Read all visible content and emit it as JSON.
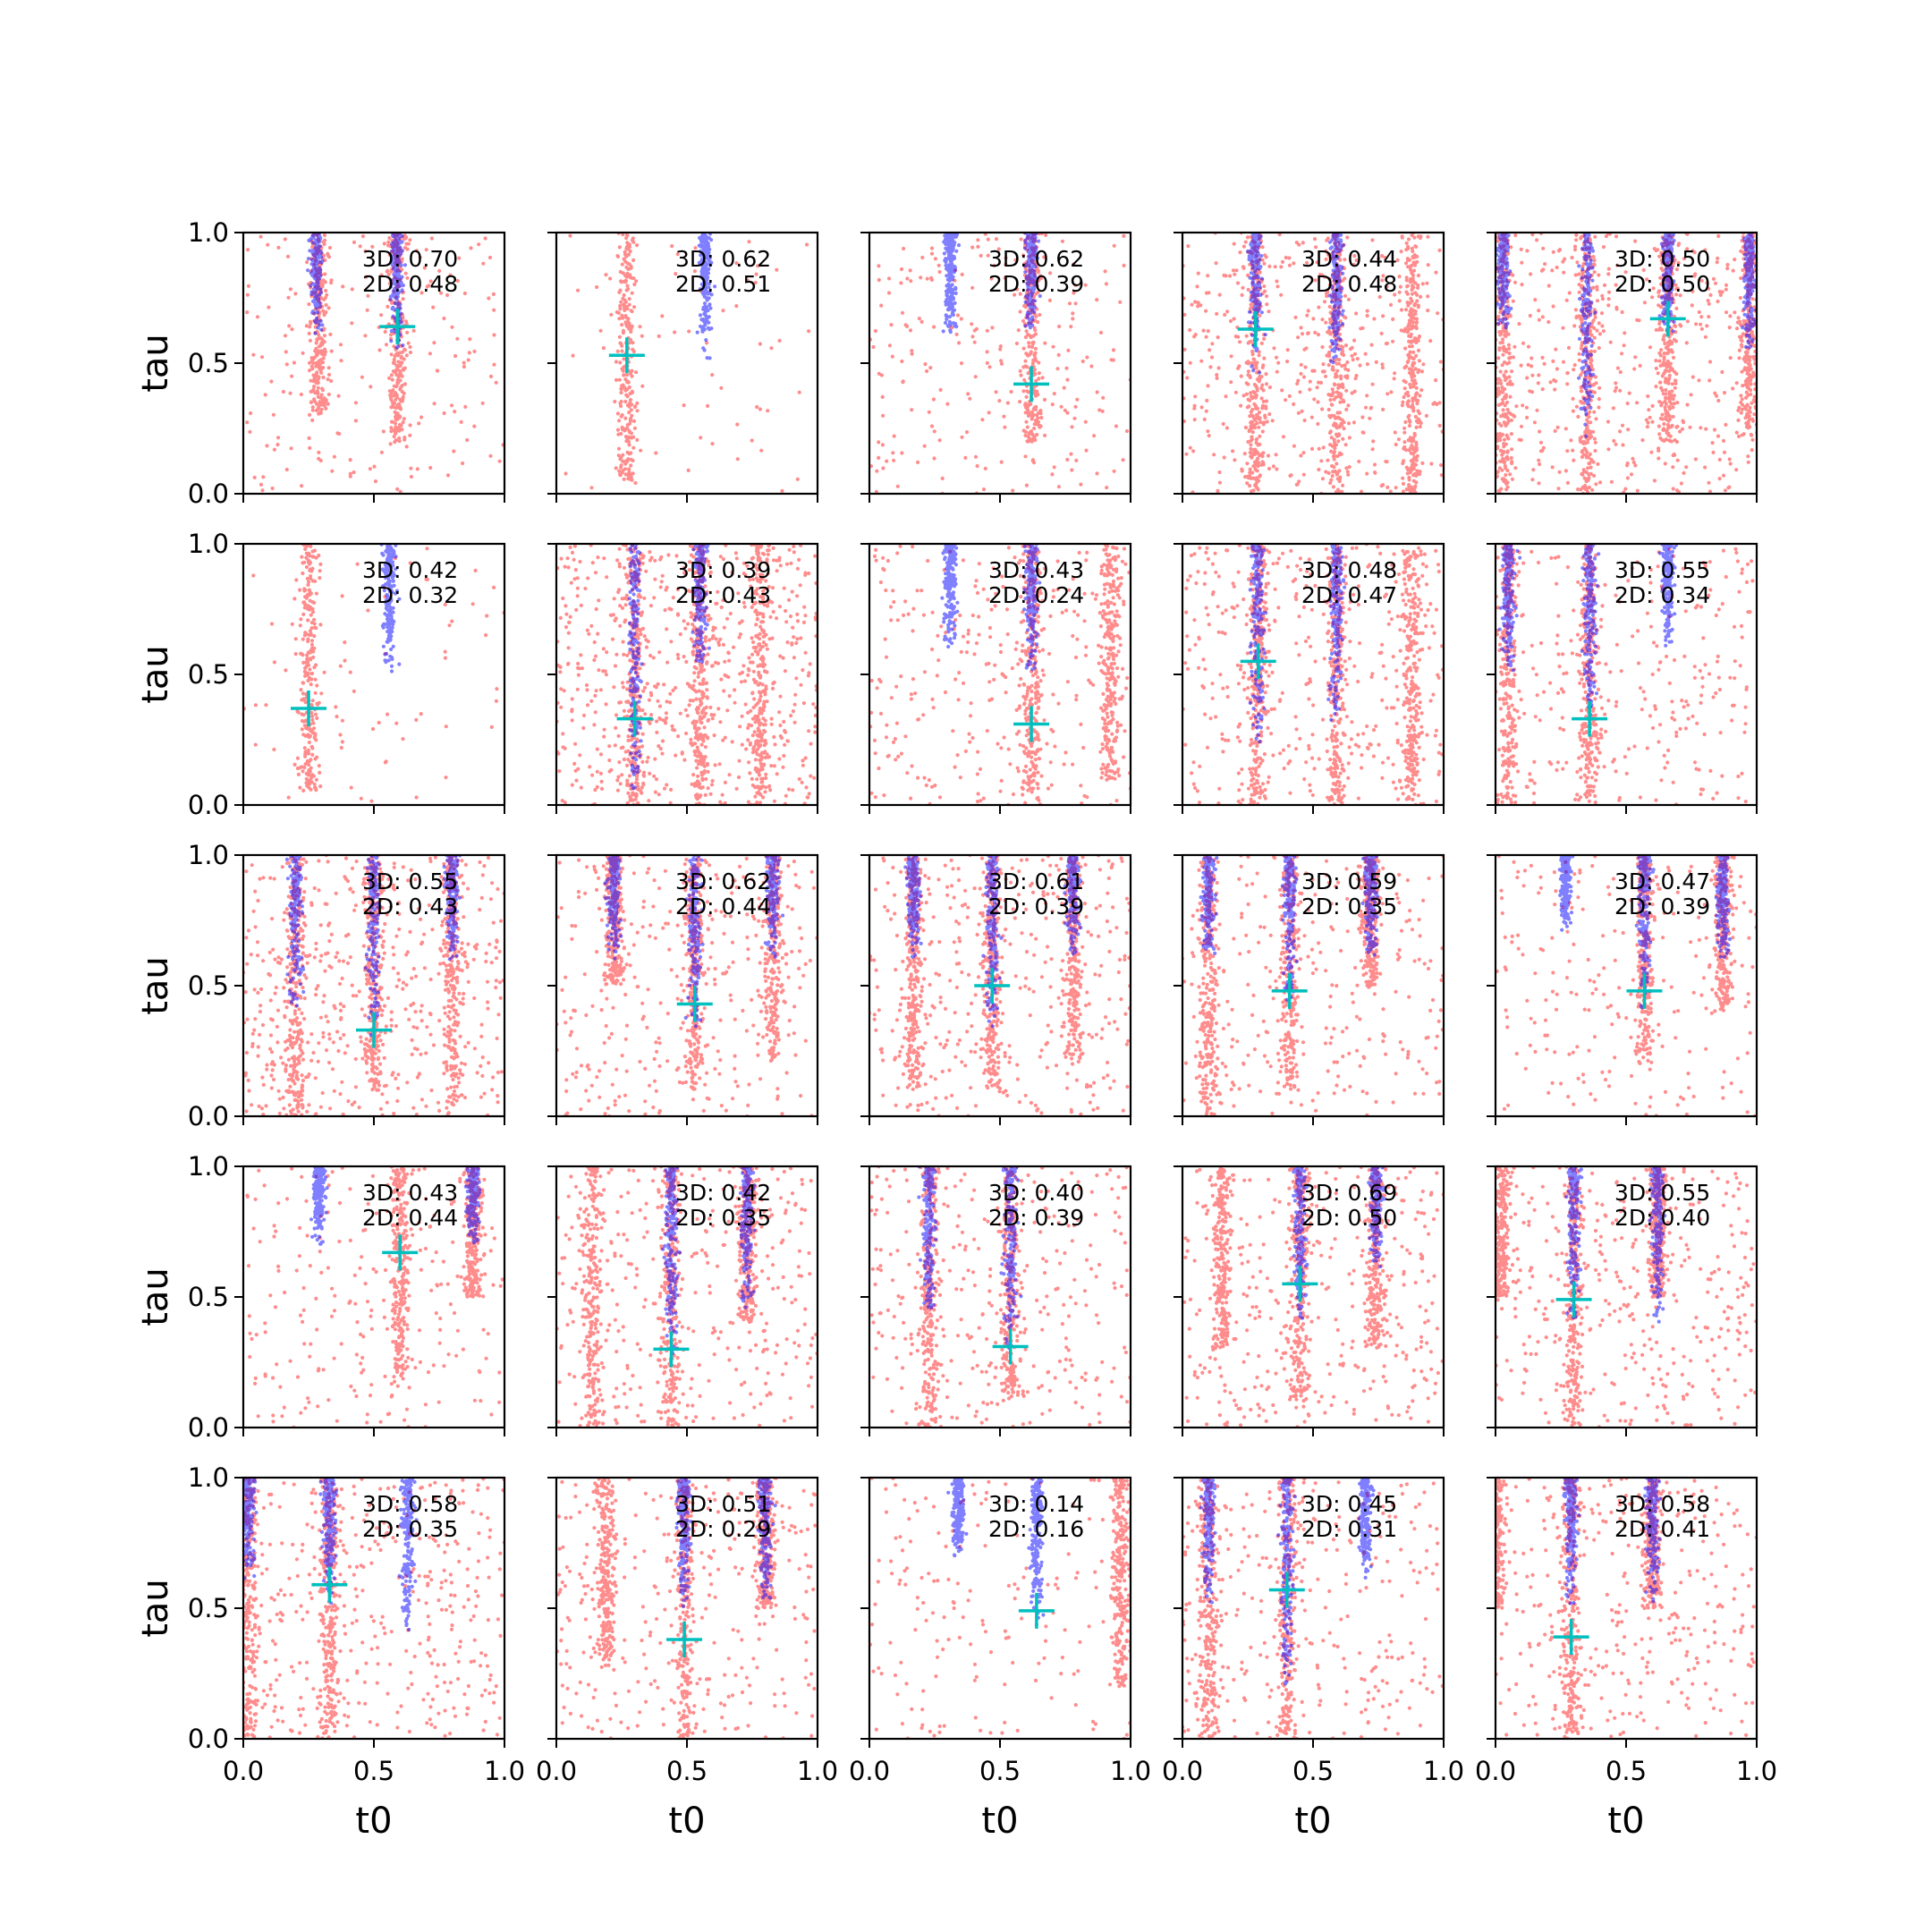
{
  "chart_data": {
    "type": "scatter",
    "layout": {
      "rows": 5,
      "cols": 5
    },
    "xlabel": "t0",
    "ylabel": "tau",
    "xlim": [
      0,
      1
    ],
    "ylim": [
      0,
      1
    ],
    "xticks": [
      "0.0",
      "0.5",
      "1.0"
    ],
    "yticks": [
      "0.0",
      "0.5",
      "1.0"
    ],
    "colors": {
      "series_a": "#ff0000",
      "series_b": "#0000ff",
      "marker": "#00bfbf"
    },
    "panels": [
      {
        "metric_3d": "3D: 0.70",
        "metric_2d": "2D: 0.48",
        "marker": [
          0.59,
          0.64
        ],
        "red_bands": [
          [
            0.59,
            0.18
          ],
          [
            0.29,
            0.3
          ]
        ],
        "blue_bands": [
          [
            0.28,
            0.6
          ],
          [
            0.59,
            0.55
          ]
        ],
        "red_bg": 180
      },
      {
        "metric_3d": "3D: 0.62",
        "metric_2d": "2D: 0.51",
        "marker": [
          0.27,
          0.53
        ],
        "red_bands": [
          [
            0.27,
            0.05
          ]
        ],
        "blue_bands": [
          [
            0.57,
            0.5
          ]
        ],
        "red_bg": 60
      },
      {
        "metric_3d": "3D: 0.62",
        "metric_2d": "2D: 0.39",
        "marker": [
          0.62,
          0.42
        ],
        "red_bands": [
          [
            0.62,
            0.2
          ]
        ],
        "blue_bands": [
          [
            0.31,
            0.6
          ],
          [
            0.62,
            0.6
          ]
        ],
        "red_bg": 220
      },
      {
        "metric_3d": "3D: 0.44",
        "metric_2d": "2D: 0.48",
        "marker": [
          0.28,
          0.63
        ],
        "red_bands": [
          [
            0.28,
            0.0
          ],
          [
            0.59,
            0.0
          ],
          [
            0.88,
            0.0
          ]
        ],
        "blue_bands": [
          [
            0.28,
            0.45
          ],
          [
            0.59,
            0.5
          ]
        ],
        "red_bg": 420
      },
      {
        "metric_3d": "3D: 0.50",
        "metric_2d": "2D: 0.50",
        "marker": [
          0.66,
          0.67
        ],
        "red_bands": [
          [
            0.03,
            0.0
          ],
          [
            0.35,
            0.0
          ],
          [
            0.66,
            0.2
          ],
          [
            0.97,
            0.2
          ]
        ],
        "blue_bands": [
          [
            0.03,
            0.6
          ],
          [
            0.35,
            0.2
          ],
          [
            0.66,
            0.6
          ],
          [
            0.97,
            0.5
          ]
        ],
        "red_bg": 380
      },
      {
        "metric_3d": "3D: 0.42",
        "metric_2d": "2D: 0.32",
        "marker": [
          0.25,
          0.37
        ],
        "red_bands": [
          [
            0.25,
            0.05
          ]
        ],
        "blue_bands": [
          [
            0.56,
            0.5
          ]
        ],
        "red_bg": 70
      },
      {
        "metric_3d": "3D: 0.39",
        "metric_2d": "2D: 0.43",
        "marker": [
          0.3,
          0.33
        ],
        "red_bands": [
          [
            0.3,
            0.0
          ],
          [
            0.55,
            0.0
          ],
          [
            0.78,
            0.0
          ]
        ],
        "blue_bands": [
          [
            0.3,
            0.0
          ],
          [
            0.55,
            0.5
          ]
        ],
        "red_bg": 600
      },
      {
        "metric_3d": "3D: 0.43",
        "metric_2d": "2D: 0.24",
        "marker": [
          0.62,
          0.31
        ],
        "red_bands": [
          [
            0.62,
            0.05
          ],
          [
            0.92,
            0.1
          ]
        ],
        "blue_bands": [
          [
            0.31,
            0.6
          ],
          [
            0.62,
            0.5
          ]
        ],
        "red_bg": 300
      },
      {
        "metric_3d": "3D: 0.48",
        "metric_2d": "2D: 0.47",
        "marker": [
          0.29,
          0.55
        ],
        "red_bands": [
          [
            0.29,
            0.0
          ],
          [
            0.59,
            0.0
          ],
          [
            0.88,
            0.0
          ]
        ],
        "blue_bands": [
          [
            0.29,
            0.2
          ],
          [
            0.59,
            0.3
          ]
        ],
        "red_bg": 380
      },
      {
        "metric_3d": "3D: 0.55",
        "metric_2d": "2D: 0.34",
        "marker": [
          0.36,
          0.33
        ],
        "red_bands": [
          [
            0.05,
            0.0
          ],
          [
            0.36,
            0.0
          ]
        ],
        "blue_bands": [
          [
            0.05,
            0.5
          ],
          [
            0.36,
            0.3
          ],
          [
            0.66,
            0.6
          ]
        ],
        "red_bg": 280
      },
      {
        "metric_3d": "3D: 0.55",
        "metric_2d": "2D: 0.43",
        "marker": [
          0.5,
          0.33
        ],
        "red_bands": [
          [
            0.2,
            0.0
          ],
          [
            0.5,
            0.1
          ],
          [
            0.8,
            0.0
          ]
        ],
        "blue_bands": [
          [
            0.2,
            0.4
          ],
          [
            0.5,
            0.3
          ],
          [
            0.8,
            0.6
          ]
        ],
        "red_bg": 480
      },
      {
        "metric_3d": "3D: 0.62",
        "metric_2d": "2D: 0.44",
        "marker": [
          0.53,
          0.43
        ],
        "red_bands": [
          [
            0.22,
            0.5
          ],
          [
            0.53,
            0.1
          ],
          [
            0.83,
            0.2
          ]
        ],
        "blue_bands": [
          [
            0.22,
            0.6
          ],
          [
            0.53,
            0.3
          ],
          [
            0.83,
            0.6
          ]
        ],
        "red_bg": 320
      },
      {
        "metric_3d": "3D: 0.61",
        "metric_2d": "2D: 0.39",
        "marker": [
          0.47,
          0.5
        ],
        "red_bands": [
          [
            0.17,
            0.1
          ],
          [
            0.47,
            0.1
          ],
          [
            0.78,
            0.2
          ]
        ],
        "blue_bands": [
          [
            0.17,
            0.6
          ],
          [
            0.47,
            0.3
          ],
          [
            0.78,
            0.6
          ]
        ],
        "red_bg": 380
      },
      {
        "metric_3d": "3D: 0.59",
        "metric_2d": "2D: 0.35",
        "marker": [
          0.41,
          0.48
        ],
        "red_bands": [
          [
            0.1,
            0.0
          ],
          [
            0.41,
            0.1
          ],
          [
            0.72,
            0.5
          ]
        ],
        "blue_bands": [
          [
            0.1,
            0.6
          ],
          [
            0.41,
            0.4
          ],
          [
            0.72,
            0.6
          ]
        ],
        "red_bg": 260
      },
      {
        "metric_3d": "3D: 0.47",
        "metric_2d": "2D: 0.39",
        "marker": [
          0.57,
          0.48
        ],
        "red_bands": [
          [
            0.57,
            0.2
          ],
          [
            0.87,
            0.4
          ]
        ],
        "blue_bands": [
          [
            0.27,
            0.7
          ],
          [
            0.57,
            0.4
          ],
          [
            0.87,
            0.6
          ]
        ],
        "red_bg": 200
      },
      {
        "metric_3d": "3D: 0.43",
        "metric_2d": "2D: 0.44",
        "marker": [
          0.6,
          0.67
        ],
        "red_bands": [
          [
            0.6,
            0.18
          ],
          [
            0.88,
            0.5
          ]
        ],
        "blue_bands": [
          [
            0.29,
            0.7
          ],
          [
            0.88,
            0.7
          ]
        ],
        "red_bg": 220
      },
      {
        "metric_3d": "3D: 0.42",
        "metric_2d": "2D: 0.35",
        "marker": [
          0.44,
          0.3
        ],
        "red_bands": [
          [
            0.44,
            0.0
          ],
          [
            0.14,
            0.0
          ],
          [
            0.73,
            0.4
          ]
        ],
        "blue_bands": [
          [
            0.44,
            0.25
          ],
          [
            0.73,
            0.45
          ]
        ],
        "red_bg": 330
      },
      {
        "metric_3d": "3D: 0.40",
        "metric_2d": "2D: 0.39",
        "marker": [
          0.54,
          0.31
        ],
        "red_bands": [
          [
            0.23,
            0.0
          ],
          [
            0.54,
            0.1
          ]
        ],
        "blue_bands": [
          [
            0.23,
            0.4
          ],
          [
            0.54,
            0.3
          ]
        ],
        "red_bg": 300
      },
      {
        "metric_3d": "3D: 0.69",
        "metric_2d": "2D: 0.50",
        "marker": [
          0.45,
          0.55
        ],
        "red_bands": [
          [
            0.45,
            0.1
          ],
          [
            0.15,
            0.3
          ],
          [
            0.74,
            0.3
          ]
        ],
        "blue_bands": [
          [
            0.45,
            0.4
          ],
          [
            0.74,
            0.6
          ]
        ],
        "red_bg": 330
      },
      {
        "metric_3d": "3D: 0.55",
        "metric_2d": "2D: 0.40",
        "marker": [
          0.3,
          0.49
        ],
        "red_bands": [
          [
            0.3,
            0.0
          ],
          [
            0.02,
            0.5
          ],
          [
            0.62,
            0.5
          ]
        ],
        "blue_bands": [
          [
            0.3,
            0.4
          ],
          [
            0.62,
            0.4
          ]
        ],
        "red_bg": 350
      },
      {
        "metric_3d": "3D: 0.58",
        "metric_2d": "2D: 0.35",
        "marker": [
          0.33,
          0.59
        ],
        "red_bands": [
          [
            0.02,
            0.0
          ],
          [
            0.33,
            0.0
          ]
        ],
        "blue_bands": [
          [
            0.02,
            0.6
          ],
          [
            0.33,
            0.5
          ],
          [
            0.63,
            0.4
          ]
        ],
        "red_bg": 380
      },
      {
        "metric_3d": "3D: 0.51",
        "metric_2d": "2D: 0.29",
        "marker": [
          0.49,
          0.38
        ],
        "red_bands": [
          [
            0.49,
            0.0
          ],
          [
            0.19,
            0.3
          ],
          [
            0.8,
            0.5
          ]
        ],
        "blue_bands": [
          [
            0.49,
            0.5
          ],
          [
            0.8,
            0.5
          ]
        ],
        "red_bg": 300
      },
      {
        "metric_3d": "3D: 0.14",
        "metric_2d": "2D: 0.16",
        "marker": [
          0.64,
          0.49
        ],
        "red_bands": [
          [
            0.96,
            0.2
          ]
        ],
        "blue_bands": [
          [
            0.34,
            0.7
          ],
          [
            0.64,
            0.42
          ]
        ],
        "red_bg": 170
      },
      {
        "metric_3d": "3D: 0.45",
        "metric_2d": "2D: 0.31",
        "marker": [
          0.4,
          0.57
        ],
        "red_bands": [
          [
            0.1,
            0.0
          ],
          [
            0.4,
            0.0
          ]
        ],
        "blue_bands": [
          [
            0.1,
            0.5
          ],
          [
            0.4,
            0.2
          ],
          [
            0.7,
            0.6
          ]
        ],
        "red_bg": 280
      },
      {
        "metric_3d": "3D: 0.58",
        "metric_2d": "2D: 0.41",
        "marker": [
          0.29,
          0.39
        ],
        "red_bands": [
          [
            0.29,
            0.0
          ],
          [
            0.6,
            0.5
          ],
          [
            0.0,
            0.5
          ]
        ],
        "blue_bands": [
          [
            0.29,
            0.5
          ],
          [
            0.6,
            0.5
          ]
        ],
        "red_bg": 320
      }
    ]
  }
}
